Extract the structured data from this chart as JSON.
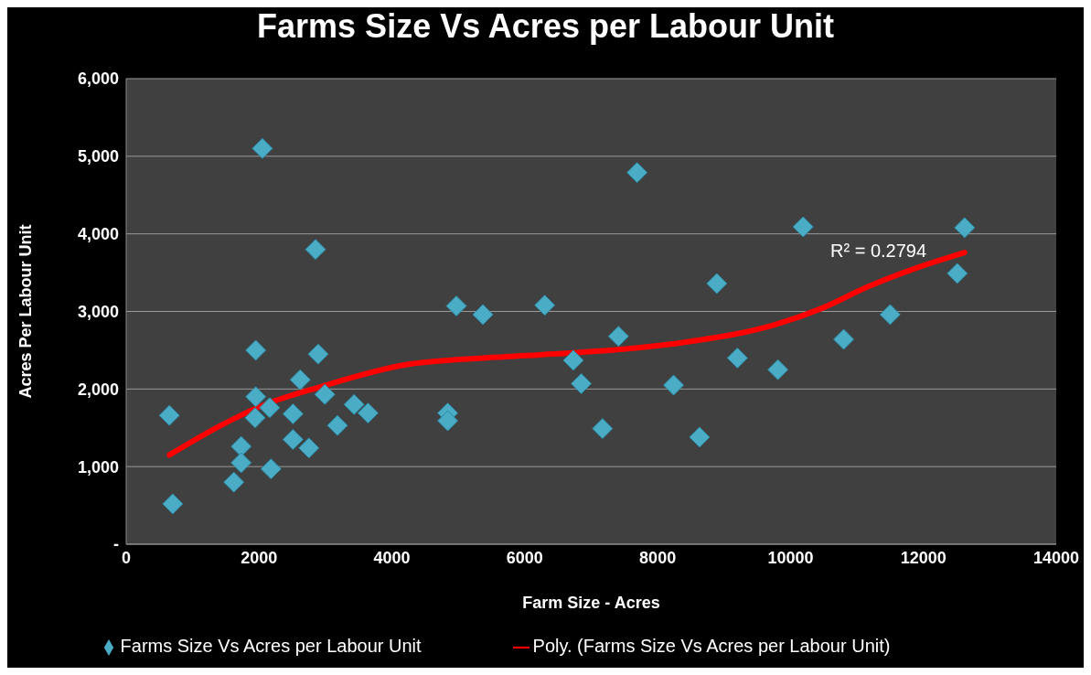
{
  "chart_data": {
    "type": "scatter",
    "title": "Farms Size Vs Acres per Labour Unit",
    "xlabel": "Farm Size - Acres",
    "ylabel": "Acres Per Labour Unit",
    "xlim": [
      0,
      14000
    ],
    "xticks": [
      0,
      2000,
      4000,
      6000,
      8000,
      10000,
      12000,
      14000
    ],
    "ylim": [
      0,
      6000
    ],
    "yticks": [
      {
        "value": 0,
        "label": "-"
      },
      {
        "value": 1000,
        "label": "1,000"
      },
      {
        "value": 2000,
        "label": "2,000"
      },
      {
        "value": 3000,
        "label": "3,000"
      },
      {
        "value": 4000,
        "label": "4,000"
      },
      {
        "value": 5000,
        "label": "5,000"
      },
      {
        "value": 6000,
        "label": "6,000"
      }
    ],
    "grid": "y",
    "legend": "bottom",
    "annotations": [
      "R² = 0.2794"
    ],
    "series": [
      {
        "name": "Farms Size Vs Acres per Labour Unit",
        "marker": "diamond",
        "color": "#4bacc6",
        "x": [
          650,
          700,
          2050,
          2850,
          1950,
          2890,
          2620,
          1950,
          1940,
          2160,
          2510,
          2990,
          2510,
          2750,
          1730,
          1730,
          1620,
          2180,
          3180,
          3430,
          3640,
          4840,
          4840,
          4970,
          5370,
          6300,
          6730,
          6850,
          7410,
          7170,
          7690,
          8240,
          8630,
          8890,
          9200,
          9810,
          10190,
          10800,
          11500,
          12620,
          12510
        ],
        "values": [
          1660,
          520,
          5100,
          3800,
          2500,
          2450,
          2120,
          1900,
          1630,
          1760,
          1680,
          1930,
          1350,
          1240,
          1260,
          1050,
          800,
          970,
          1530,
          1800,
          1690,
          1690,
          1590,
          3070,
          2960,
          3080,
          2370,
          2070,
          2680,
          1490,
          4790,
          2050,
          1380,
          3360,
          2400,
          2250,
          4090,
          2640,
          2960,
          4080,
          3490
        ]
      },
      {
        "name": "Poly. (Farms Size Vs Acres per Labour Unit)",
        "type": "line",
        "marker": "none",
        "color": "#ff0000",
        "x": [
          650,
          1400,
          2090,
          2930,
          4190,
          5580,
          6980,
          8380,
          9770,
          10470,
          11170,
          11860,
          12620
        ],
        "values": [
          1150,
          1520,
          1800,
          2030,
          2310,
          2410,
          2480,
          2600,
          2830,
          3040,
          3320,
          3550,
          3760
        ]
      }
    ]
  }
}
